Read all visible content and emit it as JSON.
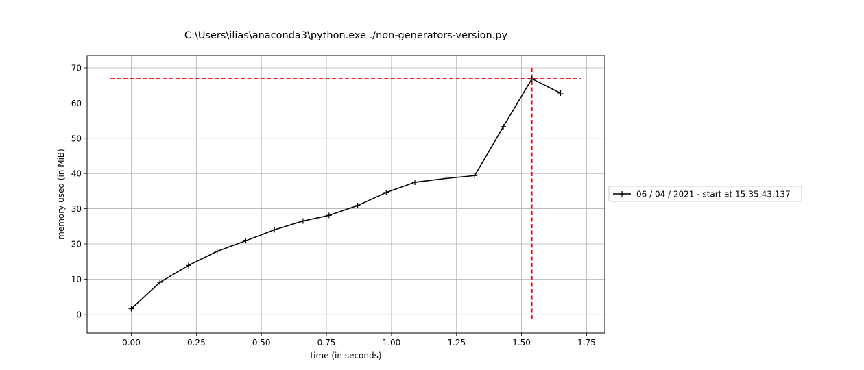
{
  "chart_data": {
    "type": "line",
    "title": "C:\\Users\\ilias\\anaconda3\\python.exe ./non-generators-version.py",
    "xlabel": "time (in seconds)",
    "ylabel": "memory used (in MiB)",
    "xlim": [
      -0.17,
      1.82
    ],
    "ylim": [
      -5.3,
      73.5
    ],
    "xticks": [
      0.0,
      0.25,
      0.5,
      0.75,
      1.0,
      1.25,
      1.5,
      1.75
    ],
    "xtick_labels": [
      "0.00",
      "0.25",
      "0.50",
      "0.75",
      "1.00",
      "1.25",
      "1.50",
      "1.75"
    ],
    "yticks": [
      0,
      10,
      20,
      30,
      40,
      50,
      60,
      70
    ],
    "ytick_labels": [
      "0",
      "10",
      "20",
      "30",
      "40",
      "50",
      "60",
      "70"
    ],
    "grid": true,
    "legend_position": "outside-right",
    "series": [
      {
        "name": "06 / 04 / 2021 - start at 15:35:43.137",
        "color": "#000000",
        "marker": "+",
        "x": [
          0.0,
          0.11,
          0.22,
          0.33,
          0.44,
          0.55,
          0.66,
          0.76,
          0.87,
          0.98,
          1.09,
          1.21,
          1.32,
          1.43,
          1.54,
          1.65
        ],
        "y": [
          1.6,
          9.1,
          13.9,
          17.9,
          20.9,
          24.0,
          26.5,
          28.1,
          30.9,
          34.6,
          37.5,
          38.6,
          39.4,
          53.3,
          66.9,
          62.8
        ]
      }
    ],
    "reference_lines": {
      "color": "#ff0000",
      "style": "dashed",
      "horizontal_y": 66.9,
      "horizontal_xrange": [
        -0.08,
        1.73
      ],
      "vertical_x": 1.54,
      "vertical_yrange": [
        -1.7,
        70.0
      ]
    }
  }
}
